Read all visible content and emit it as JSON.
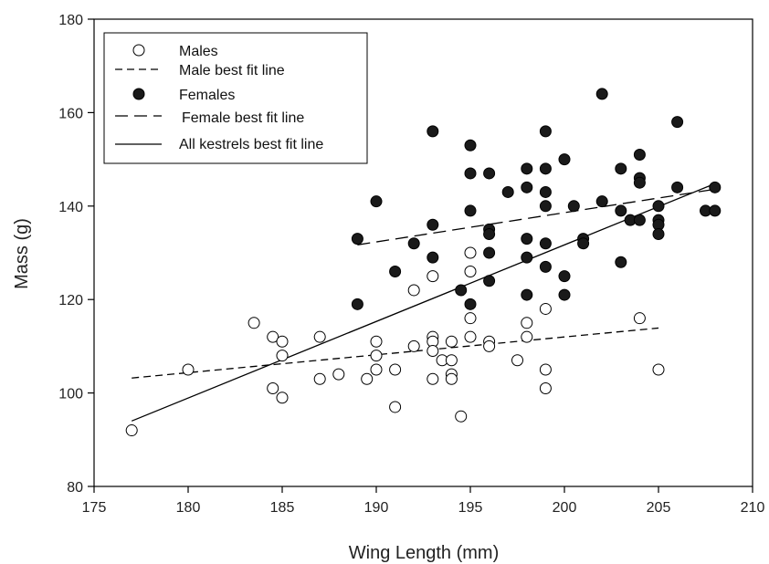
{
  "chart_data": {
    "type": "scatter",
    "xlabel": "Wing Length (mm)",
    "ylabel": "Mass (g)",
    "xlim": [
      175,
      210
    ],
    "ylim": [
      80,
      180
    ],
    "xticks": [
      "175",
      "180",
      "185",
      "190",
      "195",
      "200",
      "205",
      "210"
    ],
    "yticks": [
      "80",
      "100",
      "120",
      "140",
      "160",
      "180"
    ],
    "grid": false,
    "legend_position": "top-left",
    "colors": {
      "male_fill": "#ffffff",
      "female_fill": "#1a1a1a",
      "stroke": "#000000"
    },
    "series": [
      {
        "name": "Males",
        "marker": "open-circle",
        "points": [
          [
            177,
            92
          ],
          [
            180,
            105
          ],
          [
            183.5,
            115
          ],
          [
            184.5,
            112
          ],
          [
            184.5,
            101
          ],
          [
            185,
            111
          ],
          [
            185,
            108
          ],
          [
            185,
            99
          ],
          [
            187,
            112
          ],
          [
            187,
            103
          ],
          [
            188,
            104
          ],
          [
            189.5,
            103
          ],
          [
            190,
            111
          ],
          [
            190,
            108
          ],
          [
            190,
            105
          ],
          [
            191,
            105
          ],
          [
            191,
            97
          ],
          [
            192,
            122
          ],
          [
            192,
            110
          ],
          [
            193,
            125
          ],
          [
            193,
            112
          ],
          [
            193,
            111
          ],
          [
            193,
            109
          ],
          [
            193,
            103
          ],
          [
            193.5,
            107
          ],
          [
            194,
            111
          ],
          [
            194,
            107
          ],
          [
            194,
            104
          ],
          [
            194,
            103
          ],
          [
            194.5,
            95
          ],
          [
            195,
            130
          ],
          [
            195,
            126
          ],
          [
            195,
            116
          ],
          [
            195,
            112
          ],
          [
            196,
            111
          ],
          [
            196,
            110
          ],
          [
            197.5,
            107
          ],
          [
            198,
            115
          ],
          [
            198,
            112
          ],
          [
            199,
            118
          ],
          [
            199,
            105
          ],
          [
            199,
            101
          ],
          [
            204,
            116
          ],
          [
            205,
            105
          ]
        ]
      },
      {
        "name": "Male best fit line",
        "line": "dashed-short",
        "points": [
          [
            177,
            103.2
          ],
          [
            205,
            113.9
          ]
        ]
      },
      {
        "name": "Females",
        "marker": "filled-circle",
        "points": [
          [
            189,
            133
          ],
          [
            189,
            119
          ],
          [
            190,
            141
          ],
          [
            191,
            126
          ],
          [
            192,
            132
          ],
          [
            193,
            156
          ],
          [
            193,
            136
          ],
          [
            193,
            129
          ],
          [
            194.5,
            122
          ],
          [
            195,
            153
          ],
          [
            195,
            147
          ],
          [
            195,
            139
          ],
          [
            195,
            119
          ],
          [
            196,
            147
          ],
          [
            196,
            135
          ],
          [
            196,
            134
          ],
          [
            196,
            130
          ],
          [
            196,
            124
          ],
          [
            197,
            143
          ],
          [
            198,
            148
          ],
          [
            198,
            144
          ],
          [
            198,
            133
          ],
          [
            198,
            129
          ],
          [
            198,
            121
          ],
          [
            199,
            156
          ],
          [
            199,
            148
          ],
          [
            199,
            143
          ],
          [
            199,
            140
          ],
          [
            199,
            132
          ],
          [
            199,
            127
          ],
          [
            200,
            150
          ],
          [
            200,
            125
          ],
          [
            200,
            121
          ],
          [
            200.5,
            140
          ],
          [
            201,
            133
          ],
          [
            201,
            132
          ],
          [
            202,
            164
          ],
          [
            202,
            141
          ],
          [
            203,
            148
          ],
          [
            203,
            139
          ],
          [
            203,
            128
          ],
          [
            203.5,
            137
          ],
          [
            204,
            151
          ],
          [
            204,
            146
          ],
          [
            204,
            145
          ],
          [
            204,
            137
          ],
          [
            205,
            140
          ],
          [
            205,
            137
          ],
          [
            205,
            136
          ],
          [
            205,
            134
          ],
          [
            206,
            158
          ],
          [
            206,
            144
          ],
          [
            207.5,
            139
          ],
          [
            208,
            144
          ],
          [
            208,
            139
          ]
        ]
      },
      {
        "name": "Female best fit line",
        "line": "dashed-long",
        "points": [
          [
            189,
            131.7
          ],
          [
            208,
            143.6
          ]
        ]
      },
      {
        "name": "All kestrels best fit line",
        "line": "solid",
        "points": [
          [
            177,
            94
          ],
          [
            208,
            144.8
          ]
        ]
      }
    ]
  }
}
